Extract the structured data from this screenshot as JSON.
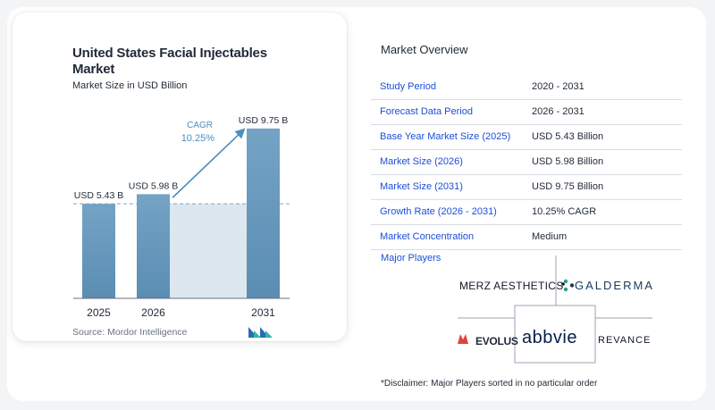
{
  "chart_data": {
    "type": "bar",
    "title": "United States Facial Injectables Market",
    "subtitle": "Market Size in USD Billion",
    "categories": [
      "2025",
      "2026",
      "2031"
    ],
    "values": [
      5.43,
      5.98,
      9.75
    ],
    "value_labels": [
      "USD 5.43 B",
      "USD 5.98 B",
      "USD 9.75 B"
    ],
    "cagr_label": "CAGR",
    "cagr_value": "10.25%",
    "source": "Source: Mordor Intelligence",
    "colors": {
      "bar_top": "#6f9ec1",
      "bar_bottom": "#5b8db3",
      "shade": "#dde7ef",
      "arrow": "#4b8fbf",
      "cagr_text": "#4b8fbf",
      "dashed": "#8aa4b8"
    }
  },
  "overview": {
    "title": "Market Overview",
    "rows": [
      {
        "label": "Study Period",
        "value": "2020 - 2031"
      },
      {
        "label": "Forecast Data Period",
        "value": "2026 - 2031"
      },
      {
        "label": "Base Year Market Size (2025)",
        "value": "USD 5.43 Billion"
      },
      {
        "label": "Market Size (2026)",
        "value": "USD 5.98 Billion"
      },
      {
        "label": "Market Size (2031)",
        "value": "USD 9.75 Billion"
      },
      {
        "label": "Growth Rate (2026 - 2031)",
        "value": "10.25% CAGR"
      },
      {
        "label": "Market Concentration",
        "value": "Medium"
      }
    ],
    "players_label": "Major Players",
    "players": {
      "merz": "MERZ AESTHETICS",
      "galderma": "GALDERMA",
      "evolus": "EVOLUS",
      "abbvie": "abbvie",
      "revance": "REVANCE"
    },
    "disclaimer": "*Disclaimer: Major Players sorted in no particular order"
  }
}
